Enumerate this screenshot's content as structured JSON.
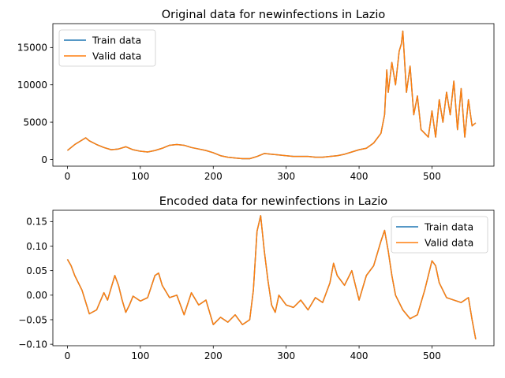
{
  "chart_data": [
    {
      "type": "line",
      "title": "Original data for newinfections in Lazio",
      "xlabel": "",
      "ylabel": "",
      "xlim": [
        -20,
        585
      ],
      "ylim": [
        -900,
        18200
      ],
      "xticks": [
        0,
        100,
        200,
        300,
        400,
        500
      ],
      "yticks": [
        0,
        5000,
        10000,
        15000
      ],
      "legend": {
        "placement": "top-left",
        "entries": [
          "Train data",
          "Valid data"
        ]
      },
      "series": [
        {
          "name": "Train data",
          "color": "#1f77b4",
          "x": [
            0,
            10,
            20,
            25,
            30,
            40,
            50,
            60,
            70,
            80,
            90,
            100,
            110,
            120,
            130,
            140,
            150,
            160,
            170,
            180,
            190,
            200,
            210,
            220,
            230,
            240,
            250,
            260,
            270,
            280,
            290,
            300,
            310,
            320,
            330,
            340,
            350,
            360,
            370,
            380,
            390,
            400,
            410,
            420,
            430,
            435,
            438,
            440,
            445,
            450,
            455,
            458,
            460,
            465,
            470,
            475,
            480,
            485,
            490,
            495,
            500,
            505,
            510,
            515,
            520,
            525,
            530,
            535,
            540,
            545,
            550,
            555,
            560
          ],
          "y": [
            1200,
            2000,
            2600,
            2900,
            2500,
            2000,
            1600,
            1300,
            1400,
            1700,
            1300,
            1100,
            1000,
            1200,
            1500,
            1900,
            2000,
            1900,
            1600,
            1400,
            1200,
            900,
            500,
            300,
            200,
            100,
            100,
            400,
            800,
            700,
            600,
            500,
            400,
            400,
            400,
            300,
            300,
            400,
            500,
            700,
            1000,
            1300,
            1500,
            2200,
            3500,
            6000,
            12000,
            9000,
            13000,
            10000,
            14500,
            15500,
            17200,
            9000,
            12500,
            6000,
            8500,
            4000,
            3500,
            3000,
            6500,
            3000,
            8000,
            5000,
            9000,
            6000,
            10500,
            4000,
            9500,
            3000,
            8000,
            4500,
            4900
          ]
        },
        {
          "name": "Valid data",
          "color": "#ff7f0e",
          "x": [
            0,
            10,
            20,
            25,
            30,
            40,
            50,
            60,
            70,
            80,
            90,
            100,
            110,
            120,
            130,
            140,
            150,
            160,
            170,
            180,
            190,
            200,
            210,
            220,
            230,
            240,
            250,
            260,
            270,
            280,
            290,
            300,
            310,
            320,
            330,
            340,
            350,
            360,
            370,
            380,
            390,
            400,
            410,
            420,
            430,
            435,
            438,
            440,
            445,
            450,
            455,
            458,
            460,
            465,
            470,
            475,
            480,
            485,
            490,
            495,
            500,
            505,
            510,
            515,
            520,
            525,
            530,
            535,
            540,
            545,
            550,
            555,
            560
          ],
          "y": [
            1200,
            2000,
            2600,
            2900,
            2500,
            2000,
            1600,
            1300,
            1400,
            1700,
            1300,
            1100,
            1000,
            1200,
            1500,
            1900,
            2000,
            1900,
            1600,
            1400,
            1200,
            900,
            500,
            300,
            200,
            100,
            100,
            400,
            800,
            700,
            600,
            500,
            400,
            400,
            400,
            300,
            300,
            400,
            500,
            700,
            1000,
            1300,
            1500,
            2200,
            3500,
            6000,
            12000,
            9000,
            13000,
            10000,
            14500,
            15500,
            17200,
            9000,
            12500,
            6000,
            8500,
            4000,
            3500,
            3000,
            6500,
            3000,
            8000,
            5000,
            9000,
            6000,
            10500,
            4000,
            9500,
            3000,
            8000,
            4500,
            4900
          ]
        }
      ]
    },
    {
      "type": "line",
      "title": "Encoded data for newinfections in Lazio",
      "xlabel": "",
      "ylabel": "",
      "xlim": [
        -20,
        585
      ],
      "ylim": [
        -0.103,
        0.173
      ],
      "xticks": [
        0,
        100,
        200,
        300,
        400,
        500
      ],
      "yticks": [
        -0.1,
        -0.05,
        0.0,
        0.05,
        0.1,
        0.15
      ],
      "ytick_labels": [
        "−0.10",
        "−0.05",
        "0.00",
        "0.05",
        "0.10",
        "0.15"
      ],
      "legend": {
        "placement": "top-right",
        "entries": [
          "Train data",
          "Valid data"
        ]
      },
      "series": [
        {
          "name": "Train data",
          "color": "#1f77b4",
          "x": [
            0,
            5,
            10,
            20,
            30,
            40,
            50,
            55,
            60,
            65,
            70,
            75,
            80,
            85,
            90,
            100,
            110,
            120,
            125,
            130,
            140,
            150,
            160,
            170,
            180,
            190,
            200,
            210,
            220,
            230,
            240,
            250,
            255,
            260,
            265,
            270,
            275,
            280,
            285,
            290,
            300,
            310,
            320,
            330,
            340,
            350,
            360,
            365,
            370,
            380,
            390,
            400,
            410,
            420,
            430,
            435,
            440,
            445,
            450,
            460,
            470,
            480,
            490,
            500,
            505,
            510,
            520,
            530,
            540,
            550,
            555,
            560
          ],
          "y": [
            0.073,
            0.06,
            0.04,
            0.01,
            -0.038,
            -0.03,
            0.005,
            -0.01,
            0.015,
            0.04,
            0.02,
            -0.01,
            -0.035,
            -0.02,
            -0.002,
            -0.012,
            -0.005,
            0.04,
            0.045,
            0.02,
            -0.005,
            0.0,
            -0.04,
            0.005,
            -0.02,
            -0.01,
            -0.06,
            -0.045,
            -0.055,
            -0.04,
            -0.06,
            -0.05,
            0.01,
            0.13,
            0.162,
            0.09,
            0.03,
            -0.02,
            -0.035,
            0.0,
            -0.02,
            -0.025,
            -0.01,
            -0.03,
            -0.005,
            -0.015,
            0.025,
            0.065,
            0.04,
            0.02,
            0.05,
            -0.01,
            0.04,
            0.06,
            0.11,
            0.132,
            0.09,
            0.04,
            0.0,
            -0.03,
            -0.048,
            -0.04,
            0.01,
            0.07,
            0.06,
            0.025,
            -0.005,
            -0.01,
            -0.015,
            -0.005,
            -0.05,
            -0.09
          ]
        },
        {
          "name": "Valid data",
          "color": "#ff7f0e",
          "x": [
            0,
            5,
            10,
            20,
            30,
            40,
            50,
            55,
            60,
            65,
            70,
            75,
            80,
            85,
            90,
            100,
            110,
            120,
            125,
            130,
            140,
            150,
            160,
            170,
            180,
            190,
            200,
            210,
            220,
            230,
            240,
            250,
            255,
            260,
            265,
            270,
            275,
            280,
            285,
            290,
            300,
            310,
            320,
            330,
            340,
            350,
            360,
            365,
            370,
            380,
            390,
            400,
            410,
            420,
            430,
            435,
            440,
            445,
            450,
            460,
            470,
            480,
            490,
            500,
            505,
            510,
            520,
            530,
            540,
            550,
            555,
            560
          ],
          "y": [
            0.073,
            0.06,
            0.04,
            0.01,
            -0.038,
            -0.03,
            0.005,
            -0.01,
            0.015,
            0.04,
            0.02,
            -0.01,
            -0.035,
            -0.02,
            -0.002,
            -0.012,
            -0.005,
            0.04,
            0.045,
            0.02,
            -0.005,
            0.0,
            -0.04,
            0.005,
            -0.02,
            -0.01,
            -0.06,
            -0.045,
            -0.055,
            -0.04,
            -0.06,
            -0.05,
            0.01,
            0.13,
            0.162,
            0.09,
            0.03,
            -0.02,
            -0.035,
            0.0,
            -0.02,
            -0.025,
            -0.01,
            -0.03,
            -0.005,
            -0.015,
            0.025,
            0.065,
            0.04,
            0.02,
            0.05,
            -0.01,
            0.04,
            0.06,
            0.11,
            0.132,
            0.09,
            0.04,
            0.0,
            -0.03,
            -0.048,
            -0.04,
            0.01,
            0.07,
            0.06,
            0.025,
            -0.005,
            -0.01,
            -0.015,
            -0.005,
            -0.05,
            -0.09
          ]
        }
      ]
    }
  ]
}
